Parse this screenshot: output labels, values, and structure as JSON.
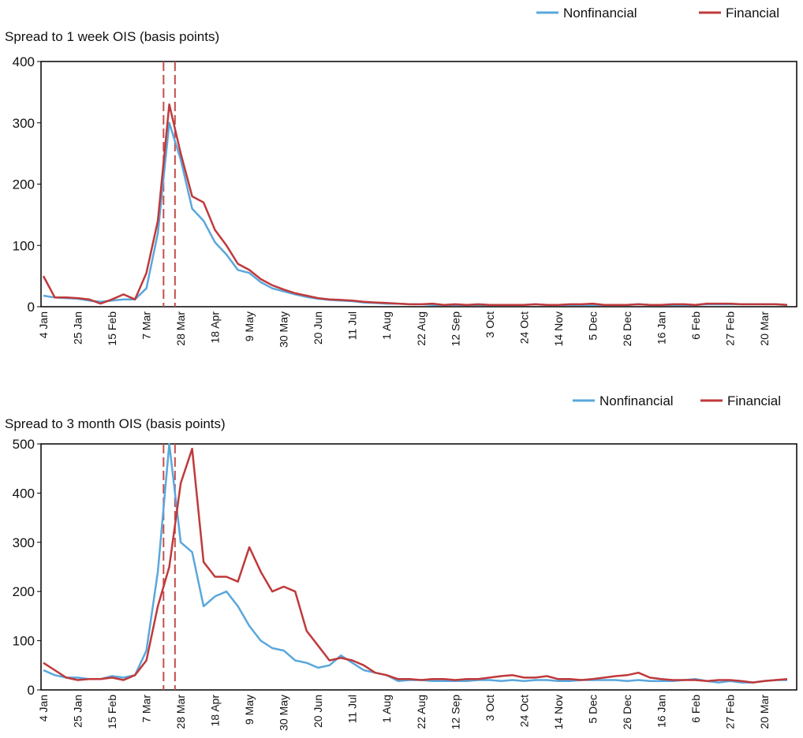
{
  "chart_data": [
    {
      "type": "line",
      "title": "Spread to 1 week OIS (basis points)",
      "categories": [
        "4 Jan",
        null,
        null,
        "25 Jan",
        null,
        null,
        "15 Feb",
        null,
        null,
        "7 Mar",
        null,
        null,
        "28 Mar",
        null,
        null,
        "18 Apr",
        null,
        null,
        "9 May",
        null,
        null,
        "30 May",
        null,
        null,
        "20 Jun",
        null,
        null,
        "11 Jul",
        null,
        null,
        "1 Aug",
        null,
        null,
        "22 Aug",
        null,
        null,
        "12 Sep",
        null,
        null,
        "3 Oct",
        null,
        null,
        "24 Oct",
        null,
        null,
        "14 Nov",
        null,
        null,
        "5 Dec",
        null,
        null,
        "26 Dec",
        null,
        null,
        "16 Jan",
        null,
        null,
        "6 Feb",
        null,
        null,
        "27 Feb",
        null,
        null,
        "20 Mar",
        null,
        null
      ],
      "series": [
        {
          "name": "Nonfinancial",
          "color": "#5aa7dc",
          "values": [
            18,
            15,
            14,
            13,
            10,
            8,
            10,
            12,
            12,
            30,
            120,
            300,
            240,
            160,
            140,
            105,
            85,
            60,
            55,
            40,
            30,
            25,
            20,
            16,
            13,
            11,
            10,
            9,
            7,
            6,
            5,
            5,
            4,
            4,
            3,
            3,
            3,
            3,
            3,
            3,
            3,
            3,
            3,
            4,
            3,
            3,
            3,
            3,
            3,
            3,
            3,
            3,
            4,
            3,
            3,
            3,
            3,
            3,
            4,
            4,
            4,
            4,
            4,
            4,
            4,
            3
          ]
        },
        {
          "name": "Financial",
          "color": "#c0393b",
          "values": [
            50,
            15,
            15,
            14,
            12,
            5,
            12,
            20,
            12,
            55,
            140,
            330,
            250,
            180,
            170,
            125,
            100,
            70,
            60,
            45,
            35,
            28,
            22,
            18,
            14,
            12,
            11,
            10,
            8,
            7,
            6,
            5,
            4,
            4,
            5,
            3,
            4,
            3,
            4,
            3,
            3,
            3,
            3,
            4,
            3,
            3,
            4,
            4,
            5,
            3,
            3,
            3,
            4,
            3,
            3,
            4,
            4,
            3,
            5,
            5,
            5,
            4,
            4,
            4,
            4,
            3
          ]
        }
      ],
      "event_lines": [
        10.5,
        11.5
      ],
      "ylim": [
        0,
        400
      ],
      "yticks": [
        0,
        100,
        200,
        300,
        400
      ]
    },
    {
      "type": "line",
      "title": "Spread to 3 month OIS (basis points)",
      "categories": [
        "4 Jan",
        null,
        null,
        "25 Jan",
        null,
        null,
        "15 Feb",
        null,
        null,
        "7 Mar",
        null,
        null,
        "28 Mar",
        null,
        null,
        "18 Apr",
        null,
        null,
        "9 May",
        null,
        null,
        "30 May",
        null,
        null,
        "20 Jun",
        null,
        null,
        "11 Jul",
        null,
        null,
        "1 Aug",
        null,
        null,
        "22 Aug",
        null,
        null,
        "12 Sep",
        null,
        null,
        "3 Oct",
        null,
        null,
        "24 Oct",
        null,
        null,
        "14 Nov",
        null,
        null,
        "5 Dec",
        null,
        null,
        "26 Dec",
        null,
        null,
        "16 Jan",
        null,
        null,
        "6 Feb",
        null,
        null,
        "27 Feb",
        null,
        null,
        "20 Mar",
        null,
        null
      ],
      "series": [
        {
          "name": "Nonfinancial",
          "color": "#5aa7dc",
          "values": [
            40,
            30,
            25,
            25,
            22,
            22,
            28,
            25,
            30,
            80,
            240,
            500,
            300,
            280,
            170,
            190,
            200,
            170,
            130,
            100,
            85,
            80,
            60,
            55,
            45,
            50,
            70,
            55,
            40,
            35,
            30,
            18,
            20,
            20,
            18,
            18,
            18,
            18,
            20,
            20,
            18,
            20,
            18,
            20,
            20,
            18,
            18,
            20,
            20,
            20,
            20,
            18,
            20,
            18,
            18,
            18,
            20,
            22,
            18,
            15,
            18,
            15,
            15,
            18,
            20,
            20
          ]
        },
        {
          "name": "Financial",
          "color": "#c0393b",
          "values": [
            55,
            40,
            25,
            20,
            22,
            22,
            25,
            20,
            30,
            60,
            170,
            250,
            420,
            490,
            260,
            230,
            230,
            220,
            290,
            240,
            200,
            210,
            200,
            120,
            90,
            60,
            65,
            60,
            50,
            35,
            30,
            22,
            22,
            20,
            22,
            22,
            20,
            22,
            22,
            25,
            28,
            30,
            25,
            25,
            28,
            22,
            22,
            20,
            22,
            25,
            28,
            30,
            35,
            25,
            22,
            20,
            20,
            20,
            18,
            20,
            20,
            18,
            15,
            18,
            20,
            22
          ]
        }
      ],
      "event_lines": [
        10.5,
        11.5
      ],
      "ylim": [
        0,
        500
      ],
      "yticks": [
        0,
        100,
        200,
        300,
        400,
        500
      ]
    }
  ]
}
